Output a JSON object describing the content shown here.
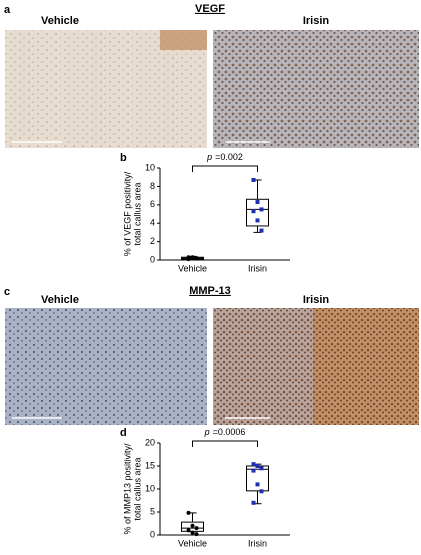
{
  "panel_a": {
    "label": "a",
    "title": "VEGF",
    "left": "Vehicle",
    "right": "Irisin"
  },
  "panel_c": {
    "label": "c",
    "title": "MMP-13",
    "left": "Vehicle",
    "right": "Irisin"
  },
  "chart_data": [
    {
      "type": "box",
      "panel_label": "b",
      "ylabel": [
        "% of VEGF positivity/",
        "total callus area"
      ],
      "p_symbol": "p",
      "p_value": "=0.002",
      "ylim": [
        0,
        10
      ],
      "yticks": [
        0,
        2,
        4,
        6,
        8,
        10
      ],
      "series": [
        {
          "name": "Vehicle",
          "color": "#000000",
          "whisker_low": 0,
          "q1": 0.1,
          "median": 0.2,
          "q3": 0.3,
          "whisker_high": 0.4,
          "points": [
            0.1,
            0.2,
            0.2,
            0.3,
            0.3
          ]
        },
        {
          "name": "Irisin",
          "color": "#1f2fb0",
          "whisker_low": 3,
          "q1": 3.7,
          "median": 5.5,
          "q3": 6.6,
          "whisker_high": 8.7,
          "points": [
            8.7,
            6.3,
            5.5,
            5.3,
            4.3,
            3.2
          ]
        }
      ]
    },
    {
      "type": "box",
      "panel_label": "d",
      "ylabel": [
        "% of MMP13 positivity/",
        "total callus area"
      ],
      "p_symbol": "p",
      "p_value": "=0.0006",
      "ylim": [
        0,
        20
      ],
      "yticks": [
        0,
        5,
        10,
        15,
        20
      ],
      "series": [
        {
          "name": "Vehicle",
          "color": "#000000",
          "whisker_low": 0,
          "q1": 0.8,
          "median": 1.5,
          "q3": 2.8,
          "whisker_high": 4.8,
          "points": [
            4.8,
            2.0,
            1.5,
            1.0,
            0.5,
            0.2
          ]
        },
        {
          "name": "Irisin",
          "color": "#1f2fb0",
          "whisker_low": 6.8,
          "q1": 9.6,
          "median": 14.3,
          "q3": 15,
          "whisker_high": 15.4,
          "points": [
            15.4,
            15,
            14.5,
            14,
            11,
            9.5,
            7
          ]
        }
      ]
    }
  ]
}
